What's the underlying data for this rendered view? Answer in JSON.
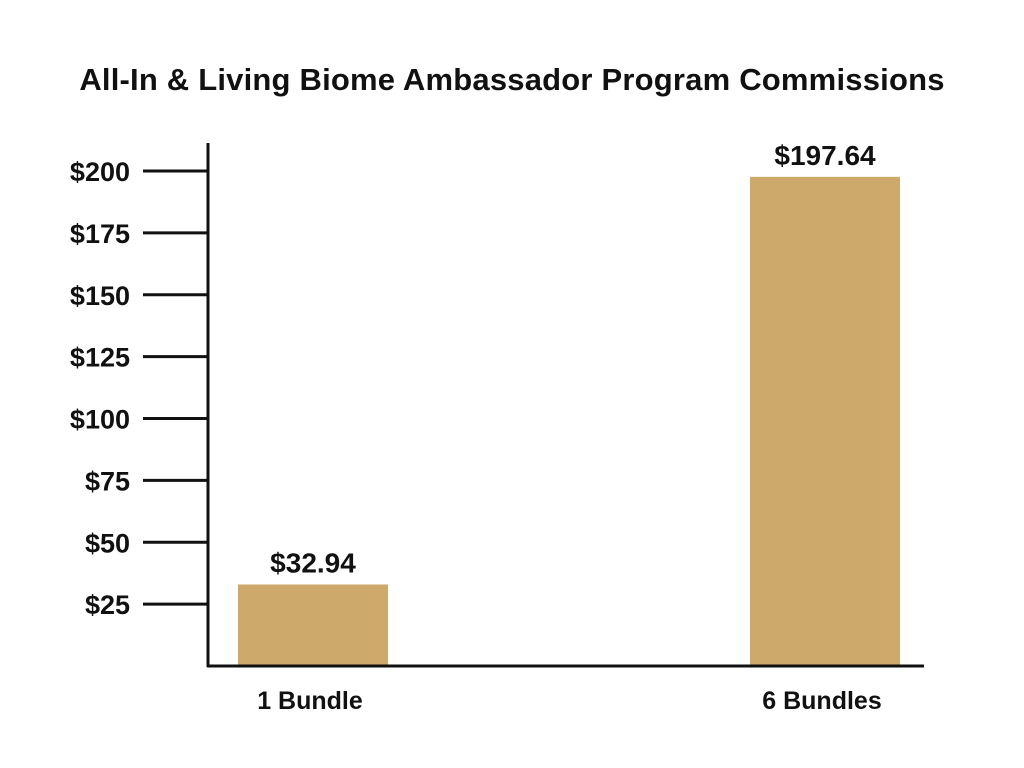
{
  "chart_data": {
    "type": "bar",
    "title": "All-In & Living Biome Ambassador Program Commissions",
    "xlabel": "",
    "ylabel": "",
    "categories": [
      "1 Bundle",
      "6 Bundles"
    ],
    "values": [
      32.94,
      197.64
    ],
    "value_labels": [
      "$32.94",
      "$197.64"
    ],
    "yticks": [
      25,
      50,
      75,
      100,
      125,
      150,
      175,
      200
    ],
    "ytick_labels": [
      "$25",
      "$50",
      "$75",
      "$100",
      "$125",
      "$150",
      "$175",
      "$200"
    ],
    "ylim": [
      0,
      210
    ],
    "grid": false,
    "legend": "none",
    "bar_color": "#CEA96C",
    "axis_color": "#111111"
  }
}
